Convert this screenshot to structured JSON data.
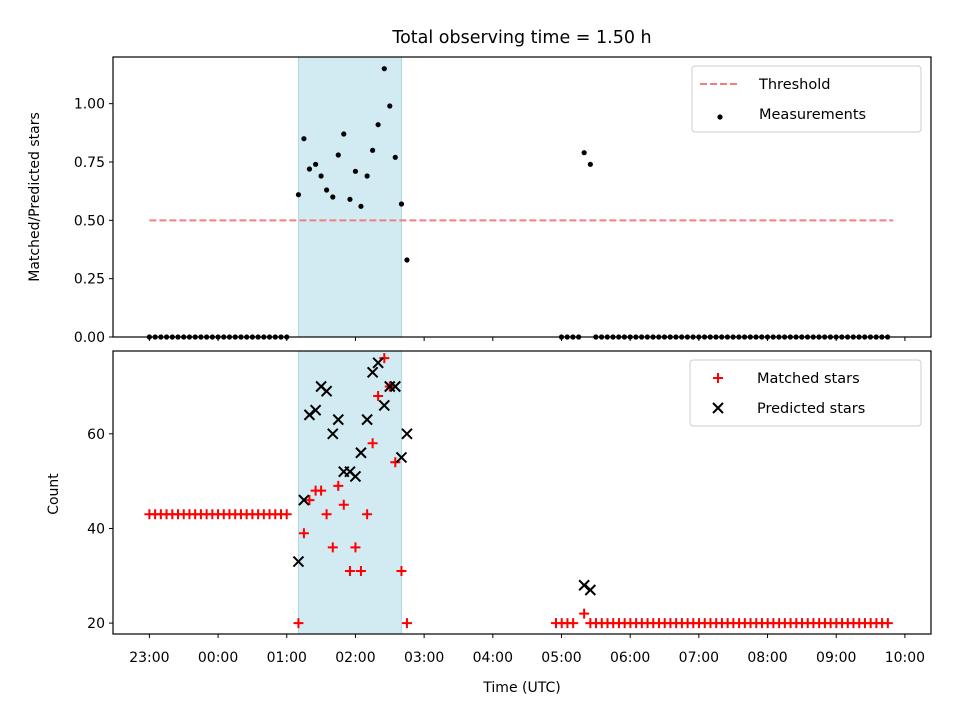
{
  "figure": {
    "title": "Total observing time = 1.50 h",
    "xlabel": "Time (UTC)",
    "x_tick_labels": [
      "23:00",
      "00:00",
      "01:00",
      "02:00",
      "03:00",
      "04:00",
      "05:00",
      "06:00",
      "07:00",
      "08:00",
      "09:00",
      "10:00"
    ]
  },
  "chart_data": [
    {
      "type": "scatter",
      "ylabel": "Matched/Predicted stars",
      "x_unit": "hours after 23:00 UTC",
      "xlim": [
        -0.53,
        11.38
      ],
      "ylim": [
        0.0,
        1.2
      ],
      "y_tick_labels": [
        "0.00",
        "0.25",
        "0.50",
        "0.75",
        "1.00"
      ],
      "y_ticks": [
        0,
        0.25,
        0.5,
        0.75,
        1.0
      ],
      "highlight_span": {
        "x0": 2.17,
        "x1": 3.67,
        "color": "#add8e6"
      },
      "legend": {
        "position": "top-right",
        "items": [
          {
            "label": "Threshold",
            "style": "dashed-line",
            "color": "#f08080"
          },
          {
            "label": "Measurements",
            "style": "dot",
            "color": "#000000"
          }
        ]
      },
      "series": [
        {
          "name": "Threshold",
          "kind": "hline",
          "y": 0.5,
          "x_range": [
            0,
            10.83
          ],
          "color": "#f08080"
        },
        {
          "name": "Measurements",
          "kind": "points",
          "color": "#000000",
          "zero_runs": [
            {
              "x_start": 0.0,
              "x_end": 2.08,
              "step": 0.0833
            },
            {
              "x_start": 6.0,
              "x_end": 6.25,
              "step": 0.0833
            },
            {
              "x_start": 6.5,
              "x_end": 10.83,
              "step": 0.0833
            }
          ],
          "points": [
            [
              2.17,
              0.61
            ],
            [
              2.25,
              0.85
            ],
            [
              2.33,
              0.72
            ],
            [
              2.42,
              0.74
            ],
            [
              2.5,
              0.69
            ],
            [
              2.58,
              0.63
            ],
            [
              2.67,
              0.6
            ],
            [
              2.75,
              0.78
            ],
            [
              2.83,
              0.87
            ],
            [
              2.92,
              0.59
            ],
            [
              3.0,
              0.71
            ],
            [
              3.08,
              0.56
            ],
            [
              3.17,
              0.69
            ],
            [
              3.25,
              0.8
            ],
            [
              3.33,
              0.91
            ],
            [
              3.42,
              1.15
            ],
            [
              3.5,
              0.99
            ],
            [
              3.58,
              0.77
            ],
            [
              3.67,
              0.57
            ],
            [
              3.75,
              0.33
            ],
            [
              6.33,
              0.79
            ],
            [
              6.42,
              0.74
            ]
          ]
        }
      ]
    },
    {
      "type": "scatter",
      "ylabel": "Count",
      "x_unit": "hours after 23:00 UTC",
      "xlim": [
        -0.53,
        11.38
      ],
      "ylim": [
        17.7,
        77.5
      ],
      "y_tick_labels": [
        "20",
        "40",
        "60"
      ],
      "y_ticks": [
        20,
        40,
        60
      ],
      "highlight_span": {
        "x0": 2.17,
        "x1": 3.67,
        "color": "#add8e6"
      },
      "legend": {
        "position": "top-right",
        "items": [
          {
            "label": "Matched stars",
            "style": "plus",
            "color": "#ff0000"
          },
          {
            "label": "Predicted stars",
            "style": "cross",
            "color": "#000000"
          }
        ]
      },
      "series": [
        {
          "name": "Matched stars",
          "marker": "plus",
          "color": "#ff0000",
          "constant_runs": [
            {
              "x_start": 0.0,
              "x_end": 2.08,
              "step": 0.0833,
              "y": 43
            },
            {
              "x_start": 5.92,
              "x_end": 6.25,
              "step": 0.0833,
              "y": 20
            },
            {
              "x_start": 6.42,
              "x_end": 10.83,
              "step": 0.0833,
              "y": 20
            }
          ],
          "points": [
            [
              2.17,
              20
            ],
            [
              2.25,
              39
            ],
            [
              2.33,
              46
            ],
            [
              2.42,
              48
            ],
            [
              2.5,
              48
            ],
            [
              2.58,
              43
            ],
            [
              2.67,
              36
            ],
            [
              2.75,
              49
            ],
            [
              2.83,
              45
            ],
            [
              2.92,
              31
            ],
            [
              3.0,
              36
            ],
            [
              3.08,
              31
            ],
            [
              3.17,
              43
            ],
            [
              3.25,
              58
            ],
            [
              3.33,
              68
            ],
            [
              3.42,
              76
            ],
            [
              3.5,
              70
            ],
            [
              3.58,
              54
            ],
            [
              3.67,
              31
            ],
            [
              3.75,
              20
            ],
            [
              6.33,
              22
            ]
          ]
        },
        {
          "name": "Predicted stars",
          "marker": "cross",
          "color": "#000000",
          "points": [
            [
              2.17,
              33
            ],
            [
              2.25,
              46
            ],
            [
              2.33,
              64
            ],
            [
              2.42,
              65
            ],
            [
              2.5,
              70
            ],
            [
              2.58,
              69
            ],
            [
              2.67,
              60
            ],
            [
              2.75,
              63
            ],
            [
              2.83,
              52
            ],
            [
              2.92,
              52
            ],
            [
              3.0,
              51
            ],
            [
              3.08,
              56
            ],
            [
              3.17,
              63
            ],
            [
              3.25,
              73
            ],
            [
              3.33,
              75
            ],
            [
              3.42,
              66
            ],
            [
              3.5,
              70
            ],
            [
              3.58,
              70
            ],
            [
              3.67,
              55
            ],
            [
              3.75,
              60
            ],
            [
              6.33,
              28
            ],
            [
              6.42,
              27
            ]
          ]
        }
      ]
    }
  ]
}
